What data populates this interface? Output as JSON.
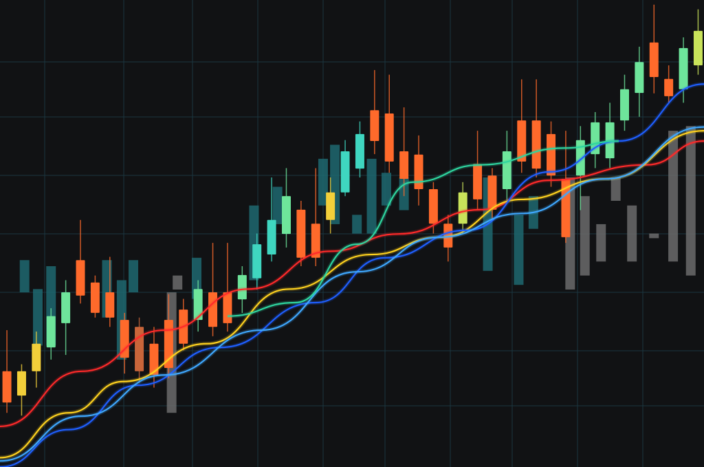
{
  "chart_data": {
    "type": "candlestick",
    "title": "",
    "xlabel": "",
    "ylabel": "",
    "xlim": [
      -0.47,
      47.4
    ],
    "ylim": [
      0,
      100
    ],
    "grid": true,
    "colors": {
      "background": "#111214",
      "grid": "#1a3640",
      "orange": "#ff6a2b",
      "green": "#6ee59b",
      "teal": "#3fd6c0",
      "yellow": "#f2cf3a",
      "yellowgreen": "#c9e35a",
      "brown": "#c9653a",
      "gray": "#6b6b6b",
      "dimteal": "#1f6870"
    },
    "candles": [
      {
        "x": 0,
        "o": 20.5,
        "h": 29.3,
        "l": 11.6,
        "c": 13.8,
        "color": "orange"
      },
      {
        "x": 1,
        "o": 15.3,
        "h": 22,
        "l": 11,
        "c": 20.5,
        "color": "yellow"
      },
      {
        "x": 2,
        "o": 20.5,
        "h": 29,
        "l": 17,
        "c": 26.4,
        "color": "yellow"
      },
      {
        "x": 3,
        "o": 25.6,
        "h": 34,
        "l": 23,
        "c": 32.3,
        "color": "green"
      },
      {
        "x": 4,
        "o": 30.8,
        "h": 40,
        "l": 24,
        "c": 37.4,
        "color": "green"
      },
      {
        "x": 5,
        "o": 44.3,
        "h": 52.9,
        "l": 35,
        "c": 36.7,
        "color": "orange"
      },
      {
        "x": 6,
        "o": 39.5,
        "h": 41,
        "l": 32,
        "c": 33,
        "color": "orange"
      },
      {
        "x": 7,
        "o": 37.4,
        "h": 45,
        "l": 30,
        "c": 32,
        "color": "orange"
      },
      {
        "x": 8,
        "o": 31.5,
        "h": 33,
        "l": 20,
        "c": 23.4,
        "color": "orange"
      },
      {
        "x": 9,
        "o": 30,
        "h": 32,
        "l": 18,
        "c": 20.5,
        "color": "brown"
      },
      {
        "x": 10,
        "o": 26.4,
        "h": 30,
        "l": 17,
        "c": 19.7,
        "color": "orange"
      },
      {
        "x": 11,
        "o": 31.5,
        "h": 37,
        "l": 19,
        "c": 21.2,
        "color": "orange"
      },
      {
        "x": 12,
        "o": 33.7,
        "h": 36,
        "l": 25,
        "c": 26.4,
        "color": "orange"
      },
      {
        "x": 13,
        "o": 31.5,
        "h": 40,
        "l": 29,
        "c": 38.1,
        "color": "green"
      },
      {
        "x": 14,
        "o": 37.4,
        "h": 48,
        "l": 28,
        "c": 30,
        "color": "orange"
      },
      {
        "x": 15,
        "o": 37.4,
        "h": 48,
        "l": 29,
        "c": 30.8,
        "color": "orange"
      },
      {
        "x": 16,
        "o": 35.9,
        "h": 43,
        "l": 33,
        "c": 41.1,
        "color": "green"
      },
      {
        "x": 17,
        "o": 40.4,
        "h": 50,
        "l": 38,
        "c": 47.7,
        "color": "teal"
      },
      {
        "x": 18,
        "o": 45.5,
        "h": 62,
        "l": 44,
        "c": 52.9,
        "color": "teal"
      },
      {
        "x": 19,
        "o": 49.9,
        "h": 64,
        "l": 47,
        "c": 58,
        "color": "green"
      },
      {
        "x": 20,
        "o": 55.1,
        "h": 57,
        "l": 43,
        "c": 44.8,
        "color": "orange"
      },
      {
        "x": 21,
        "o": 52.1,
        "h": 64,
        "l": 43,
        "c": 44.8,
        "color": "orange"
      },
      {
        "x": 22,
        "o": 52.9,
        "h": 62,
        "l": 50,
        "c": 58.8,
        "color": "yellow"
      },
      {
        "x": 23,
        "o": 58.8,
        "h": 70,
        "l": 58,
        "c": 67.6,
        "color": "teal"
      },
      {
        "x": 24,
        "o": 63.9,
        "h": 74,
        "l": 62,
        "c": 71.3,
        "color": "teal"
      },
      {
        "x": 25,
        "o": 76.4,
        "h": 85,
        "l": 67,
        "c": 69.8,
        "color": "orange"
      },
      {
        "x": 26,
        "o": 75.7,
        "h": 84,
        "l": 63,
        "c": 65.4,
        "color": "orange"
      },
      {
        "x": 27,
        "o": 67.6,
        "h": 77,
        "l": 58,
        "c": 61.7,
        "color": "orange"
      },
      {
        "x": 28,
        "o": 66.9,
        "h": 71,
        "l": 56,
        "c": 59.5,
        "color": "orange"
      },
      {
        "x": 29,
        "o": 59.5,
        "h": 61,
        "l": 50,
        "c": 52.1,
        "color": "orange"
      },
      {
        "x": 30,
        "o": 52.1,
        "h": 54,
        "l": 44,
        "c": 47,
        "color": "orange"
      },
      {
        "x": 31,
        "o": 52.1,
        "h": 61,
        "l": 50,
        "c": 58.8,
        "color": "yellowgreen"
      },
      {
        "x": 32,
        "o": 64.9,
        "h": 72,
        "l": 55,
        "c": 57.3,
        "color": "orange"
      },
      {
        "x": 33,
        "o": 62.4,
        "h": 64,
        "l": 53,
        "c": 55.1,
        "color": "orange"
      },
      {
        "x": 34,
        "o": 59.5,
        "h": 72,
        "l": 57,
        "c": 67.6,
        "color": "green"
      },
      {
        "x": 35,
        "o": 74.2,
        "h": 83,
        "l": 63,
        "c": 65.4,
        "color": "orange"
      },
      {
        "x": 36,
        "o": 74.2,
        "h": 83,
        "l": 62,
        "c": 63.9,
        "color": "orange"
      },
      {
        "x": 37,
        "o": 71.3,
        "h": 74,
        "l": 60,
        "c": 62.4,
        "color": "orange"
      },
      {
        "x": 38,
        "o": 61.7,
        "h": 72,
        "l": 48,
        "c": 49.2,
        "color": "orange"
      },
      {
        "x": 39,
        "o": 62.4,
        "h": 73,
        "l": 55,
        "c": 70,
        "color": "green"
      },
      {
        "x": 40,
        "o": 67,
        "h": 76,
        "l": 64,
        "c": 73.8,
        "color": "green"
      },
      {
        "x": 41,
        "o": 66.1,
        "h": 78,
        "l": 64,
        "c": 73.8,
        "color": "green"
      },
      {
        "x": 42,
        "o": 74.2,
        "h": 84,
        "l": 72,
        "c": 80.9,
        "color": "green"
      },
      {
        "x": 43,
        "o": 80.1,
        "h": 90,
        "l": 75,
        "c": 86.7,
        "color": "green"
      },
      {
        "x": 44,
        "o": 90.9,
        "h": 99,
        "l": 80,
        "c": 83.5,
        "color": "orange"
      },
      {
        "x": 45,
        "o": 83.1,
        "h": 86,
        "l": 78,
        "c": 79.4,
        "color": "orange"
      },
      {
        "x": 46,
        "o": 80.9,
        "h": 92,
        "l": 78,
        "c": 89.7,
        "color": "green"
      },
      {
        "x": 47,
        "o": 86,
        "h": 98,
        "l": 84,
        "c": 93.4,
        "color": "yellowgreen"
      }
    ],
    "background_bars": [
      {
        "x": 1.2,
        "top": 44.3,
        "bottom": 37.4,
        "color": "dimteal"
      },
      {
        "x": 2.1,
        "top": 38.1,
        "bottom": 26,
        "color": "dimteal"
      },
      {
        "x": 3.0,
        "top": 43,
        "bottom": 26,
        "color": "dimteal"
      },
      {
        "x": 6.8,
        "top": 44.3,
        "bottom": 32,
        "color": "dimteal"
      },
      {
        "x": 7.8,
        "top": 40,
        "bottom": 23,
        "color": "dimteal"
      },
      {
        "x": 8.6,
        "top": 44.3,
        "bottom": 37.4,
        "color": "dimteal"
      },
      {
        "x": 11.2,
        "top": 37.4,
        "bottom": 11.6,
        "color": "gray"
      },
      {
        "x": 11.6,
        "top": 41,
        "bottom": 38,
        "color": "gray"
      },
      {
        "x": 12.9,
        "top": 44.8,
        "bottom": 36,
        "color": "dimteal"
      },
      {
        "x": 16.8,
        "top": 56,
        "bottom": 40,
        "color": "dimteal"
      },
      {
        "x": 18.4,
        "top": 60,
        "bottom": 52,
        "color": "dimteal"
      },
      {
        "x": 21.5,
        "top": 66,
        "bottom": 56,
        "color": "dimteal"
      },
      {
        "x": 22.3,
        "top": 69,
        "bottom": 52,
        "color": "dimteal"
      },
      {
        "x": 23.8,
        "top": 54,
        "bottom": 50,
        "color": "dimteal"
      },
      {
        "x": 24.8,
        "top": 66,
        "bottom": 50,
        "color": "dimteal"
      },
      {
        "x": 25.8,
        "top": 63,
        "bottom": 56,
        "color": "dimteal"
      },
      {
        "x": 27,
        "top": 62,
        "bottom": 55,
        "color": "dimteal"
      },
      {
        "x": 32.7,
        "top": 62,
        "bottom": 42,
        "color": "dimteal"
      },
      {
        "x": 34.8,
        "top": 54,
        "bottom": 39,
        "color": "dimteal"
      },
      {
        "x": 35.8,
        "top": 58,
        "bottom": 51,
        "color": "dimteal"
      },
      {
        "x": 38.3,
        "top": 62,
        "bottom": 38,
        "color": "gray"
      },
      {
        "x": 39.3,
        "top": 58,
        "bottom": 41,
        "color": "gray"
      },
      {
        "x": 40.4,
        "top": 52,
        "bottom": 44,
        "color": "gray"
      },
      {
        "x": 41.4,
        "top": 62,
        "bottom": 57,
        "color": "gray"
      },
      {
        "x": 42.5,
        "top": 56,
        "bottom": 44,
        "color": "gray"
      },
      {
        "x": 44,
        "top": 50,
        "bottom": 49,
        "color": "gray"
      },
      {
        "x": 45.3,
        "top": 72,
        "bottom": 44,
        "color": "gray"
      },
      {
        "x": 46.5,
        "top": 73,
        "bottom": 41,
        "color": "gray"
      }
    ],
    "lines": [
      {
        "color": "#ff2a2a",
        "points": [
          [
            -0.47,
            8.7
          ],
          [
            5.1,
            20.5
          ],
          [
            10.7,
            29.3
          ],
          [
            16.4,
            38.1
          ],
          [
            22,
            46.2
          ],
          [
            26.6,
            49.9
          ],
          [
            32.2,
            55.1
          ],
          [
            36.9,
            61.4
          ],
          [
            43.5,
            64.7
          ],
          [
            47.4,
            69.8
          ]
        ]
      },
      {
        "color": "#ffd21f",
        "points": [
          [
            -0.47,
            2
          ],
          [
            4.2,
            11.6
          ],
          [
            7.9,
            18.3
          ],
          [
            13.6,
            26.4
          ],
          [
            19.2,
            38.1
          ],
          [
            24.8,
            45.5
          ],
          [
            29.4,
            49.2
          ],
          [
            35,
            57.3
          ],
          [
            40.7,
            61.7
          ],
          [
            47.4,
            72
          ]
        ]
      },
      {
        "color": "#1f5fff",
        "points": [
          [
            -0.47,
            0
          ],
          [
            4.2,
            8
          ],
          [
            8.9,
            17.5
          ],
          [
            14.5,
            25.6
          ],
          [
            21,
            35.2
          ],
          [
            25.7,
            44.8
          ],
          [
            31.3,
            50.7
          ],
          [
            36.9,
            63.2
          ],
          [
            41.6,
            69.8
          ],
          [
            47.4,
            82
          ]
        ]
      },
      {
        "color": "#3fa8ff",
        "points": [
          [
            -0.47,
            1.3
          ],
          [
            5.1,
            10.9
          ],
          [
            10.7,
            19.7
          ],
          [
            17.3,
            29.3
          ],
          [
            23.8,
            41.8
          ],
          [
            29.4,
            49.2
          ],
          [
            35,
            54.3
          ],
          [
            40.7,
            61.7
          ],
          [
            47.4,
            72.8
          ]
        ]
      },
      {
        "color": "#2fd6a0",
        "points": [
          [
            15,
            32.3
          ],
          [
            19.6,
            35.2
          ],
          [
            23.8,
            47.7
          ],
          [
            27.6,
            61
          ],
          [
            32.2,
            64.7
          ],
          [
            37.9,
            68.3
          ],
          [
            41.6,
            69.8
          ]
        ]
      }
    ]
  }
}
